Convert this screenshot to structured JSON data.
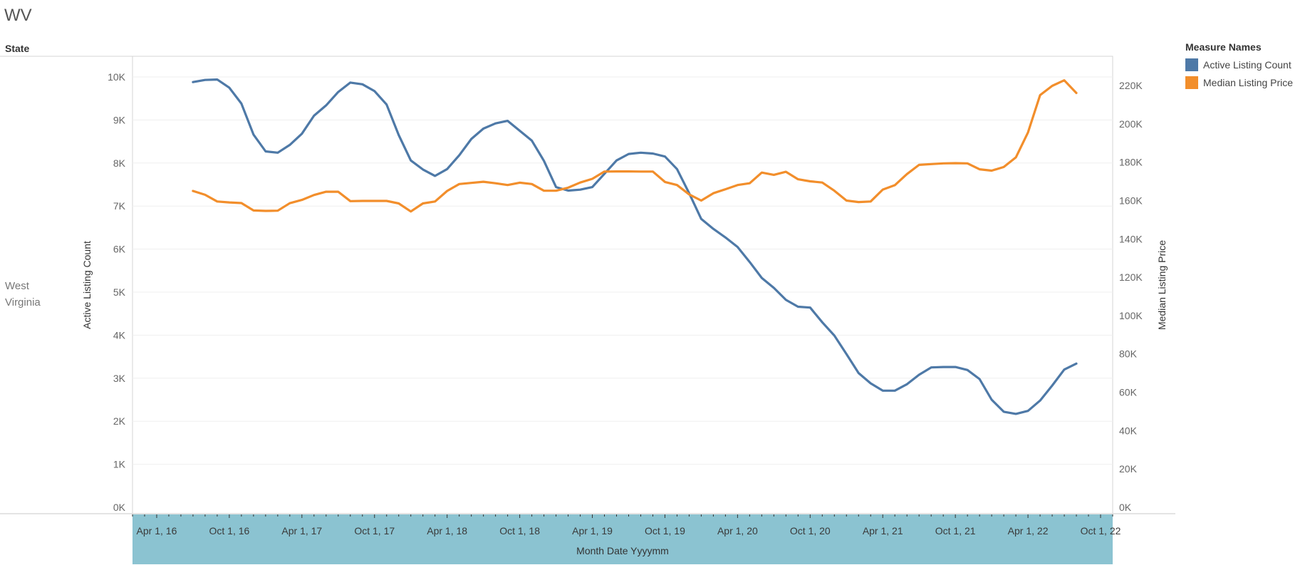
{
  "page": {
    "title": "WV"
  },
  "rows": {
    "header": "State",
    "label": "West Virginia"
  },
  "legend": {
    "title": "Measure Names",
    "items": [
      {
        "label": "Active Listing Count",
        "color": "#4e79a7"
      },
      {
        "label": "Median Listing Price",
        "color": "#f28e2b"
      }
    ]
  },
  "chart_data": {
    "type": "line",
    "title": "",
    "xlabel": "Month Date Yyyymm",
    "ylabel": "Active Listing Count",
    "y2label": "Median Listing Price",
    "ylim": [
      0,
      10500
    ],
    "y2lim": [
      0,
      232000
    ],
    "y_ticks": [
      "0K",
      "1K",
      "2K",
      "3K",
      "4K",
      "5K",
      "6K",
      "7K",
      "8K",
      "9K",
      "10K"
    ],
    "y2_ticks": [
      "0K",
      "20K",
      "40K",
      "60K",
      "80K",
      "100K",
      "120K",
      "140K",
      "160K",
      "180K",
      "200K",
      "220K"
    ],
    "x_tick_labels": [
      "Apr 1, 16",
      "Oct 1, 16",
      "Apr 1, 17",
      "Oct 1, 17",
      "Apr 1, 18",
      "Oct 1, 18",
      "Apr 1, 19",
      "Oct 1, 19",
      "Apr 1, 20",
      "Oct 1, 20",
      "Apr 1, 21",
      "Oct 1, 21",
      "Apr 1, 22",
      "Oct 1, 22"
    ],
    "x_start": "2016-07",
    "x_axis_start": "2016-02",
    "x_axis_end": "2022-11",
    "grid": true,
    "legend_position": "right",
    "series": [
      {
        "name": "Active Listing Count",
        "axis": "left",
        "color": "#4e79a7",
        "values": [
          9880,
          9930,
          9940,
          9750,
          9380,
          8660,
          8270,
          8240,
          8420,
          8680,
          9100,
          9340,
          9650,
          9870,
          9830,
          9670,
          9360,
          8650,
          8060,
          7850,
          7700,
          7860,
          8180,
          8560,
          8800,
          8920,
          8980,
          8750,
          8520,
          8050,
          7440,
          7360,
          7380,
          7440,
          7750,
          8060,
          8210,
          8240,
          8220,
          8150,
          7860,
          7300,
          6700,
          6470,
          6270,
          6050,
          5700,
          5330,
          5100,
          4820,
          4660,
          4640,
          4300,
          3990,
          3560,
          3120,
          2880,
          2710,
          2710,
          2860,
          3080,
          3250,
          3260,
          3260,
          3190,
          2980,
          2500,
          2220,
          2170,
          2240,
          2480,
          2830,
          3200,
          3340
        ]
      },
      {
        "name": "Median Listing Price",
        "axis": "right",
        "color": "#f28e2b",
        "values": [
          165000,
          163000,
          159500,
          159000,
          158700,
          154800,
          154600,
          154700,
          158600,
          160300,
          162900,
          164600,
          164600,
          159700,
          159800,
          159800,
          159800,
          158500,
          154300,
          158500,
          159500,
          165000,
          168600,
          169200,
          169800,
          169000,
          168100,
          169300,
          168600,
          165100,
          165100,
          166700,
          169400,
          171300,
          175100,
          175200,
          175200,
          175100,
          175100,
          169700,
          168100,
          163200,
          160000,
          163800,
          165900,
          168100,
          169000,
          174600,
          173400,
          175000,
          171100,
          170000,
          169400,
          165100,
          160000,
          159200,
          159500,
          165700,
          168000,
          173800,
          178600,
          179000,
          179400,
          179500,
          179400,
          176300,
          175600,
          177500,
          182500,
          195500,
          215000,
          219800,
          222700,
          216100
        ]
      }
    ]
  }
}
